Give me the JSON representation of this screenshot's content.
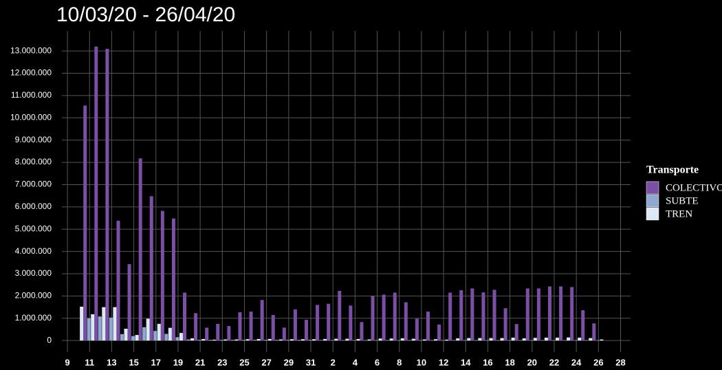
{
  "chart_data": {
    "type": "bar",
    "title": "10/03/20 - 26/04/20",
    "legend_title": "Transporte",
    "legend": "right",
    "grid": true,
    "x": [
      10,
      11,
      12,
      13,
      14,
      15,
      16,
      17,
      18,
      19,
      20,
      21,
      22,
      23,
      24,
      25,
      26,
      27,
      28,
      29,
      30,
      31,
      32,
      33,
      34,
      35,
      36,
      37,
      38,
      39,
      40,
      41,
      42,
      43,
      44,
      45,
      46,
      47,
      48,
      49,
      50,
      51,
      52,
      53,
      54,
      55,
      56,
      57
    ],
    "xlim": [
      8.5,
      59.9
    ],
    "xticks": [
      9,
      11,
      13,
      15,
      17,
      19,
      21,
      23,
      25,
      27,
      29,
      31,
      {
        "value": 33,
        "label": "2"
      },
      {
        "value": 35,
        "label": "4"
      },
      {
        "value": 37,
        "label": "6"
      },
      {
        "value": 39,
        "label": "8"
      },
      {
        "value": 41,
        "label": "10"
      },
      {
        "value": 43,
        "label": "12"
      },
      {
        "value": 45,
        "label": "14"
      },
      {
        "value": 47,
        "label": "16"
      },
      {
        "value": 49,
        "label": "18"
      },
      {
        "value": 51,
        "label": "20"
      },
      {
        "value": 53,
        "label": "22"
      },
      {
        "value": 55,
        "label": "24"
      },
      {
        "value": 57,
        "label": "26"
      },
      {
        "value": 59,
        "label": "28"
      }
    ],
    "ylim": [
      -520000,
      13900000
    ],
    "yticks": [
      0,
      {
        "value": 1000000,
        "label": "1.000.000"
      },
      {
        "value": 2000000,
        "label": "2.000.000"
      },
      {
        "value": 3000000,
        "label": "3.000.000"
      },
      {
        "value": 4000000,
        "label": "4.000.000"
      },
      {
        "value": 5000000,
        "label": "5.000.000"
      },
      {
        "value": 6000000,
        "label": "6.000.000"
      },
      {
        "value": 7000000,
        "label": "7.000.000"
      },
      {
        "value": 8000000,
        "label": "8.000.000"
      },
      {
        "value": 9000000,
        "label": "9.000.000"
      },
      {
        "value": 10000000,
        "label": "10.000.000"
      },
      {
        "value": 11000000,
        "label": "11.000.000"
      },
      {
        "value": 12000000,
        "label": "12.000.000"
      },
      {
        "value": 13000000,
        "label": "13.000.000"
      }
    ],
    "series": [
      {
        "name": "COLECTIVO",
        "color": "#7b4fa6",
        "values": [
          null,
          10550000,
          13200000,
          13100000,
          5380000,
          3430000,
          8180000,
          6480000,
          5820000,
          5480000,
          2150000,
          1230000,
          580000,
          750000,
          650000,
          1270000,
          1300000,
          1820000,
          1150000,
          580000,
          1400000,
          930000,
          1600000,
          1650000,
          2230000,
          1570000,
          830000,
          2000000,
          2060000,
          2150000,
          1720000,
          980000,
          1300000,
          720000,
          2150000,
          2260000,
          2340000,
          2160000,
          2280000,
          1450000,
          740000,
          2340000,
          2340000,
          2430000,
          2430000,
          2400000,
          1360000,
          770000
        ]
      },
      {
        "name": "SUBTE",
        "color": "#8fa8d0",
        "values": [
          null,
          1000000,
          1080000,
          1030000,
          290000,
          200000,
          600000,
          430000,
          300000,
          150000,
          50000,
          30000,
          30000,
          30000,
          30000,
          30000,
          30000,
          30000,
          30000,
          30000,
          30000,
          30000,
          20000,
          20000,
          20000,
          20000,
          20000,
          20000,
          20000,
          20000,
          20000,
          20000,
          20000,
          20000,
          20000,
          20000,
          20000,
          20000,
          20000,
          20000,
          20000,
          20000,
          20000,
          20000,
          20000,
          20000,
          20000,
          20000
        ]
      },
      {
        "name": "TREN",
        "color": "#dde8f4",
        "values": [
          1520000,
          1180000,
          1500000,
          1500000,
          530000,
          250000,
          980000,
          750000,
          570000,
          340000,
          100000,
          70000,
          40000,
          50000,
          50000,
          60000,
          70000,
          70000,
          50000,
          60000,
          60000,
          60000,
          70000,
          80000,
          80000,
          70000,
          50000,
          90000,
          90000,
          100000,
          80000,
          50000,
          60000,
          40000,
          100000,
          110000,
          110000,
          110000,
          110000,
          130000,
          100000,
          120000,
          130000,
          130000,
          140000,
          130000,
          110000,
          50000
        ]
      }
    ]
  }
}
